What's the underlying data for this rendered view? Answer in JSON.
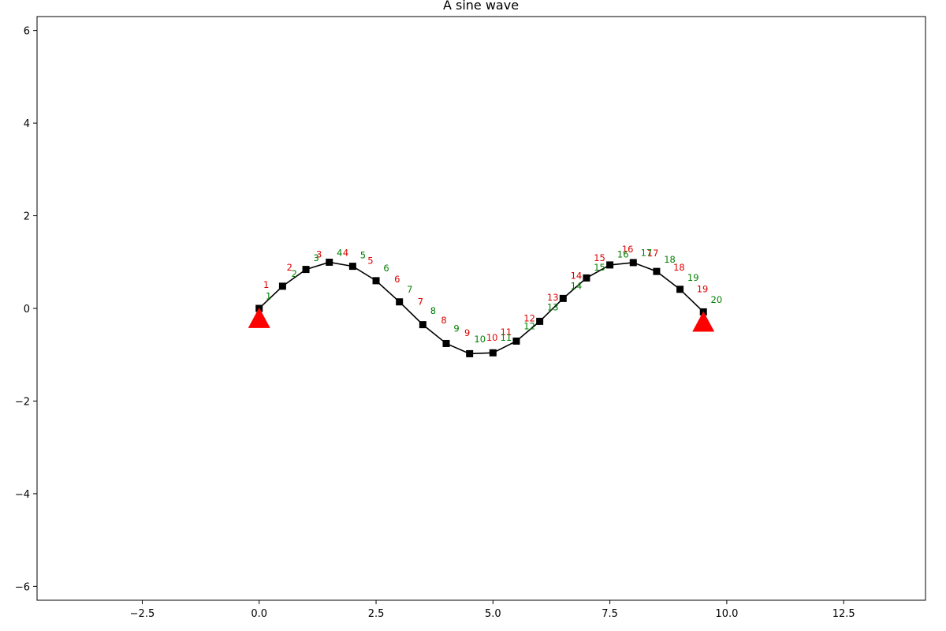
{
  "chart_data": {
    "type": "line",
    "title": "A sine wave",
    "xlabel": "",
    "ylabel": "",
    "xlim": [
      -4.75,
      14.25
    ],
    "ylim": [
      -6.3,
      6.3
    ],
    "xticks": [
      -2.5,
      0.0,
      2.5,
      5.0,
      7.5,
      10.0,
      12.5
    ],
    "xtick_labels": [
      "−2.5",
      "0.0",
      "2.5",
      "5.0",
      "7.5",
      "10.0",
      "12.5"
    ],
    "yticks": [
      -6,
      -4,
      -2,
      0,
      2,
      4,
      6
    ],
    "ytick_labels": [
      "−6",
      "−4",
      "−2",
      "0",
      "2",
      "4",
      "6"
    ],
    "grid": false,
    "series": [
      {
        "marker": "square",
        "color": "#000000",
        "x": [
          0,
          0.5,
          1,
          1.5,
          2,
          2.5,
          3,
          3.5,
          4,
          4.5,
          5,
          5.5,
          6,
          6.5,
          7,
          7.5,
          8,
          8.5,
          9,
          9.5
        ],
        "y": [
          0.0,
          0.479,
          0.841,
          0.997,
          0.909,
          0.598,
          0.141,
          -0.351,
          -0.757,
          -0.978,
          -0.959,
          -0.706,
          -0.279,
          0.215,
          0.657,
          0.938,
          0.989,
          0.798,
          0.412,
          -0.075
        ]
      }
    ],
    "supports": [
      {
        "x": 0.0,
        "y": -0.22,
        "color": "#ff0000"
      },
      {
        "x": 9.5,
        "y": -0.3,
        "color": "#ff0000"
      }
    ],
    "red_labels": {
      "color": "#dd0000",
      "items": [
        {
          "text": "1",
          "x": 0.15,
          "y": 0.44
        },
        {
          "text": "2",
          "x": 0.65,
          "y": 0.82
        },
        {
          "text": "3",
          "x": 1.28,
          "y": 1.1
        },
        {
          "text": "4",
          "x": 1.85,
          "y": 1.13
        },
        {
          "text": "5",
          "x": 2.38,
          "y": 0.96
        },
        {
          "text": "6",
          "x": 2.95,
          "y": 0.56
        },
        {
          "text": "7",
          "x": 3.45,
          "y": 0.08
        },
        {
          "text": "8",
          "x": 3.95,
          "y": -0.32
        },
        {
          "text": "9",
          "x": 4.45,
          "y": -0.6
        },
        {
          "text": "10",
          "x": 4.98,
          "y": -0.7
        },
        {
          "text": "11",
          "x": 5.28,
          "y": -0.58
        },
        {
          "text": "12",
          "x": 5.78,
          "y": -0.28
        },
        {
          "text": "13",
          "x": 6.28,
          "y": 0.17
        },
        {
          "text": "14",
          "x": 6.78,
          "y": 0.64
        },
        {
          "text": "15",
          "x": 7.28,
          "y": 1.02
        },
        {
          "text": "16",
          "x": 7.88,
          "y": 1.21
        },
        {
          "text": "17",
          "x": 8.42,
          "y": 1.12
        },
        {
          "text": "18",
          "x": 8.98,
          "y": 0.82
        },
        {
          "text": "19",
          "x": 9.48,
          "y": 0.35
        }
      ]
    },
    "green_labels": {
      "color": "#008000",
      "items": [
        {
          "text": "1",
          "x": 0.2,
          "y": 0.2
        },
        {
          "text": "2",
          "x": 0.75,
          "y": 0.68
        },
        {
          "text": "3",
          "x": 1.22,
          "y": 1.02
        },
        {
          "text": "4",
          "x": 1.72,
          "y": 1.13
        },
        {
          "text": "5",
          "x": 2.22,
          "y": 1.08
        },
        {
          "text": "6",
          "x": 2.72,
          "y": 0.8
        },
        {
          "text": "7",
          "x": 3.22,
          "y": 0.34
        },
        {
          "text": "8",
          "x": 3.72,
          "y": -0.12
        },
        {
          "text": "9",
          "x": 4.22,
          "y": -0.5
        },
        {
          "text": "10",
          "x": 4.72,
          "y": -0.73
        },
        {
          "text": "11",
          "x": 5.28,
          "y": -0.7
        },
        {
          "text": "12",
          "x": 5.78,
          "y": -0.45
        },
        {
          "text": "13",
          "x": 6.28,
          "y": -0.04
        },
        {
          "text": "14",
          "x": 6.78,
          "y": 0.42
        },
        {
          "text": "15",
          "x": 7.28,
          "y": 0.82
        },
        {
          "text": "16",
          "x": 7.78,
          "y": 1.1
        },
        {
          "text": "17",
          "x": 8.28,
          "y": 1.13
        },
        {
          "text": "18",
          "x": 8.78,
          "y": 0.99
        },
        {
          "text": "19",
          "x": 9.28,
          "y": 0.6
        },
        {
          "text": "20",
          "x": 9.78,
          "y": 0.12
        }
      ]
    }
  }
}
